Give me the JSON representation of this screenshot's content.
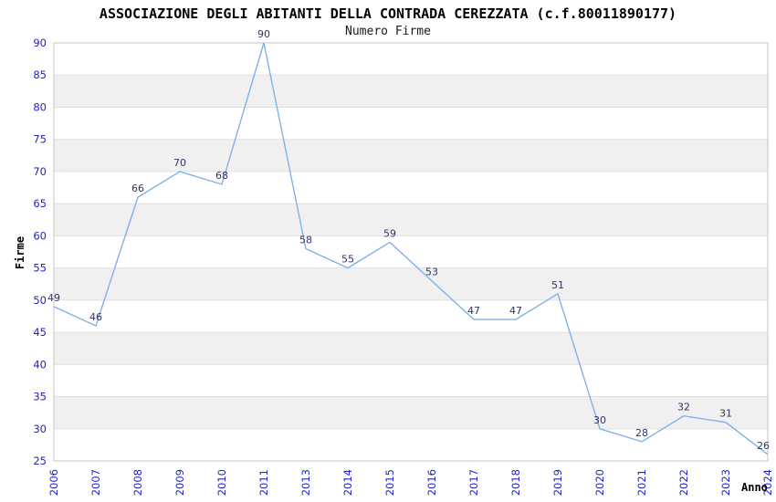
{
  "chart_data": {
    "type": "line",
    "title": "ASSOCIAZIONE DEGLI ABITANTI DELLA CONTRADA CEREZZATA (c.f.80011890177)",
    "subtitle": "Numero Firme",
    "xlabel": "Anno",
    "ylabel": "Firme",
    "categories": [
      "2006",
      "2007",
      "2008",
      "2009",
      "2010",
      "2011",
      "2013",
      "2014",
      "2015",
      "2016",
      "2017",
      "2018",
      "2019",
      "2020",
      "2021",
      "2022",
      "2023",
      "2024"
    ],
    "values": [
      49,
      46,
      66,
      70,
      68,
      90,
      58,
      55,
      59,
      53,
      47,
      47,
      51,
      30,
      28,
      32,
      31,
      26
    ],
    "ylim": [
      25,
      90
    ],
    "ytick_step": 5,
    "yticks": [
      90,
      85,
      80,
      75,
      70,
      65,
      60,
      55,
      50,
      45,
      40,
      35,
      30,
      25
    ],
    "grid": "horizontal-bands-alternating",
    "legend": "none",
    "show_point_labels": true,
    "colors": {
      "line": "#7FB2E8",
      "tick_label": "#2222CC",
      "value_label": "#333366",
      "band": "#F0F0F0",
      "gridline": "#E0E0E0",
      "plot_border": "#C4C4C4",
      "title_text": "#000000"
    }
  }
}
